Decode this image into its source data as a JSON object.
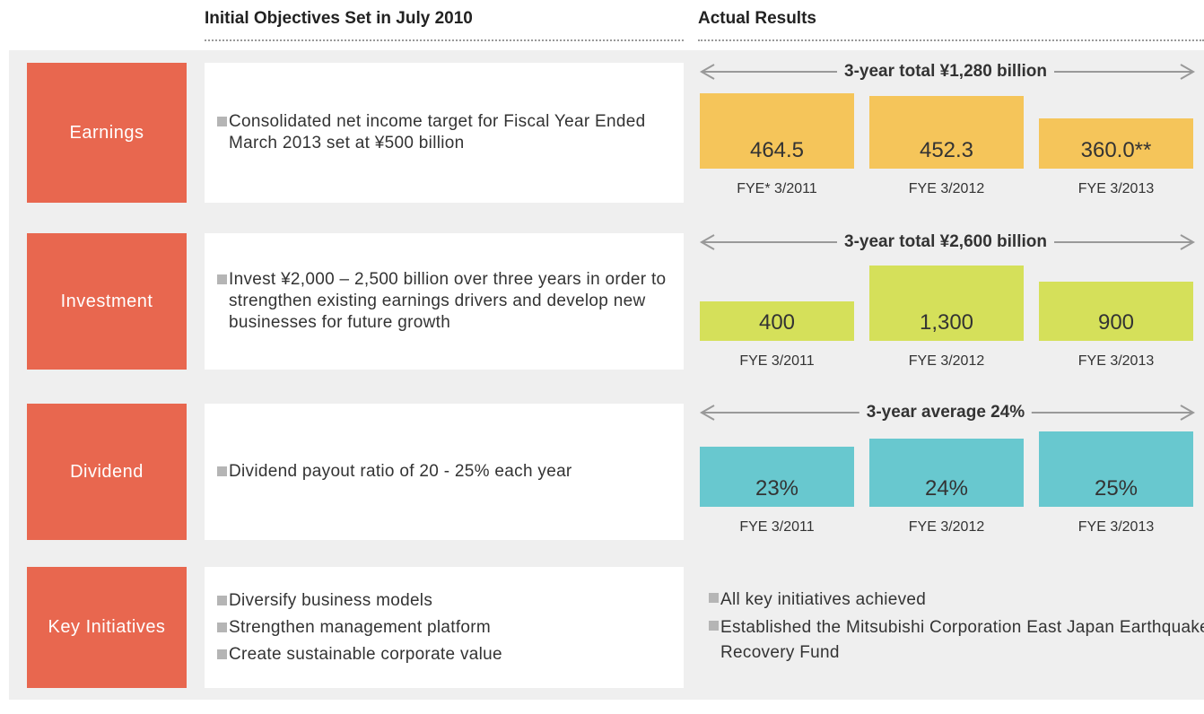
{
  "header": {
    "objectives": "Initial Objectives Set in July 2010",
    "results": "Actual Results"
  },
  "rows": [
    {
      "label": "Earnings",
      "objectives": [
        "Consolidated net income target for Fiscal Year Ended March 2013 set at ¥500 billion"
      ],
      "chart": {
        "type": "bar",
        "total": "3-year total ¥1,280 billion",
        "categories": [
          "FYE* 3/2011",
          "FYE 3/2012",
          "FYE 3/2013"
        ],
        "values": [
          464.5,
          452.3,
          360.0
        ],
        "value_labels": [
          "464.5",
          "452.3",
          "360.0**"
        ],
        "color": "#f5c55a",
        "ylim": [
          250,
          464.5
        ]
      }
    },
    {
      "label": "Investment",
      "objectives": [
        "Invest ¥2,000 – 2,500 billion over three years in order to strengthen existing earnings drivers and develop new businesses for future growth"
      ],
      "chart": {
        "type": "bar",
        "total": "3-year total ¥2,600 billion",
        "categories": [
          "FYE 3/2011",
          "FYE 3/2012",
          "FYE 3/2013"
        ],
        "values": [
          400,
          1300,
          900
        ],
        "value_labels": [
          "400",
          "1,300",
          "900"
        ],
        "color": "#d5e05a",
        "ylim": [
          0,
          1300
        ]
      }
    },
    {
      "label": "Dividend",
      "objectives": [
        "Dividend payout ratio of 20 - 25% each year"
      ],
      "chart": {
        "type": "bar",
        "total": "3-year average 24%",
        "categories": [
          "FYE 3/2011",
          "FYE 3/2012",
          "FYE 3/2013"
        ],
        "values": [
          23,
          24,
          25
        ],
        "value_labels": [
          "23%",
          "24%",
          "25%"
        ],
        "color": "#68c8cf",
        "ylim": [
          18,
          25
        ]
      }
    },
    {
      "label": "Key Initiatives",
      "objectives": [
        "Diversify business models",
        "Strengthen management platform",
        "Create sustainable corporate value"
      ],
      "results": [
        "All key initiatives achieved",
        "Established the Mitsubishi Corporation East Japan Earthquake Recovery Fund"
      ]
    }
  ]
}
